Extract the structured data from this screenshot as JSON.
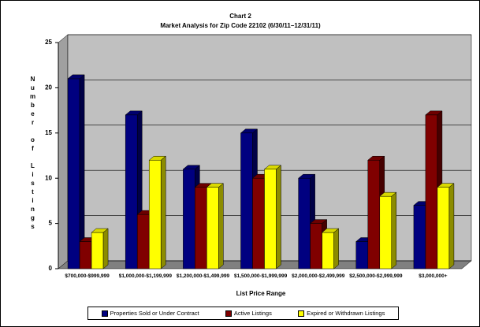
{
  "chart_data": {
    "type": "bar3d",
    "title": "Chart 2",
    "subtitle": "Market Analysis for Zip Code 22102 (6/30/11–12/31/11)",
    "y_label": "Number of Listings",
    "x_label": "List Price Range",
    "categories": [
      "$700,000-$999,999",
      "$1,000,000-$1,199,999",
      "$1,200,000-$1,499,999",
      "$1,500,000-$1,999,999",
      "$2,000,000-$2,499,999",
      "$2,500,000-$2,999,999",
      "$3,000,000+"
    ],
    "series": [
      {
        "name": "Properties Sold or Under Contract",
        "color": "#000080",
        "values": [
          21,
          17,
          11,
          15,
          10,
          3,
          7
        ]
      },
      {
        "name": "Active Listings",
        "color": "#800000",
        "values": [
          3,
          6,
          9,
          10,
          5,
          12,
          17
        ]
      },
      {
        "name": "Expired or Withdrawn Listings",
        "color": "#ffff00",
        "values": [
          4,
          12,
          9,
          11,
          4,
          8,
          9
        ]
      }
    ],
    "ylim": [
      0,
      25
    ],
    "yticks": [
      0,
      5,
      10,
      15,
      20,
      25
    ],
    "grid": true
  }
}
